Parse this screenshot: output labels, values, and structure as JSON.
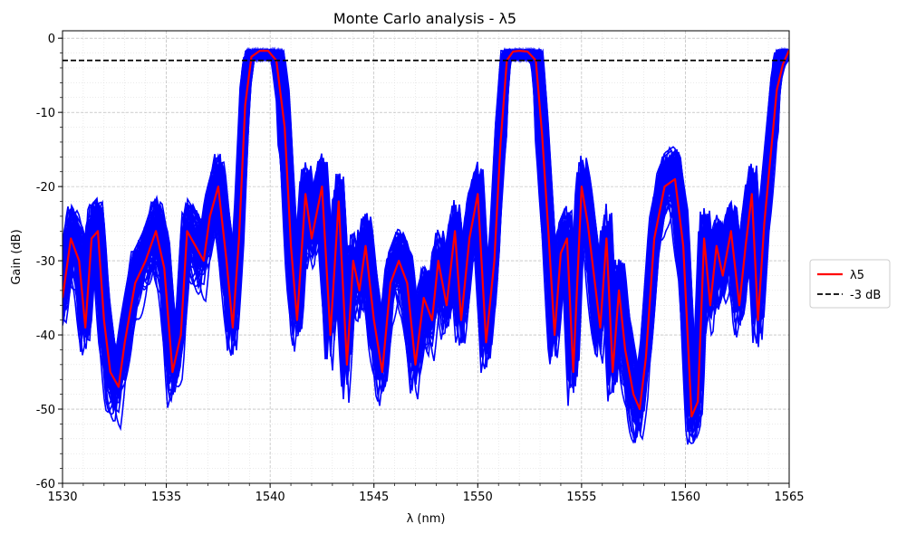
{
  "chart_data": {
    "type": "line",
    "title": "Monte Carlo analysis - λ5",
    "xlabel": "λ (nm)",
    "ylabel": "Gain (dB)",
    "xlim": [
      1530,
      1565
    ],
    "ylim": [
      -60,
      1
    ],
    "x_ticks": [
      1530,
      1535,
      1540,
      1545,
      1550,
      1555,
      1560,
      1565
    ],
    "y_ticks": [
      0,
      -10,
      -20,
      -30,
      -40,
      -50,
      -60
    ],
    "grid": true,
    "legend_position": "right-center",
    "legend": [
      "λ5",
      "-3 dB"
    ],
    "colors": {
      "main": "#ff0000",
      "monte_carlo": "#0000ff",
      "threshold": "#000000"
    },
    "threshold_db": -3,
    "main_series": {
      "name": "λ5",
      "x": [
        1530,
        1530.4,
        1530.8,
        1531.1,
        1531.4,
        1531.7,
        1532.0,
        1532.3,
        1532.7,
        1533.0,
        1533.5,
        1534.0,
        1534.5,
        1534.9,
        1535.3,
        1535.7,
        1536.0,
        1536.4,
        1536.8,
        1537.1,
        1537.5,
        1537.9,
        1538.2,
        1538.5,
        1538.8,
        1539.1,
        1539.5,
        1539.9,
        1540.3,
        1540.7,
        1541.0,
        1541.3,
        1541.7,
        1542.0,
        1542.5,
        1542.9,
        1543.3,
        1543.7,
        1544.0,
        1544.3,
        1544.6,
        1545.0,
        1545.4,
        1545.8,
        1546.2,
        1546.6,
        1547.0,
        1547.4,
        1547.8,
        1548.1,
        1548.5,
        1548.9,
        1549.2,
        1549.6,
        1550.0,
        1550.4,
        1550.8,
        1551.1,
        1551.4,
        1551.7,
        1552.0,
        1552.4,
        1552.8,
        1553.1,
        1553.4,
        1553.7,
        1554.0,
        1554.3,
        1554.6,
        1555.0,
        1555.3,
        1555.6,
        1555.9,
        1556.2,
        1556.5,
        1556.8,
        1557.1,
        1557.5,
        1557.8,
        1558.1,
        1558.5,
        1559.0,
        1559.5,
        1559.9,
        1560.3,
        1560.6,
        1560.9,
        1561.2,
        1561.5,
        1561.8,
        1562.2,
        1562.6,
        1562.9,
        1563.2,
        1563.5,
        1563.8,
        1564.1,
        1564.4,
        1564.7,
        1565.0
      ],
      "y": [
        -35,
        -27,
        -30,
        -39,
        -27,
        -26,
        -38,
        -45,
        -47,
        -41,
        -33,
        -30,
        -26,
        -31,
        -45,
        -40,
        -26,
        -28,
        -30,
        -24,
        -20,
        -30,
        -39,
        -27,
        -9,
        -2.5,
        -1.7,
        -1.7,
        -3,
        -12,
        -28,
        -38,
        -21,
        -27,
        -20,
        -40,
        -22,
        -44,
        -30,
        -34,
        -28,
        -38,
        -45,
        -33,
        -30,
        -33,
        -44,
        -35,
        -38,
        -30,
        -36,
        -26,
        -38,
        -27,
        -21,
        -41,
        -30,
        -14,
        -3,
        -1.8,
        -1.7,
        -1.8,
        -3,
        -13,
        -26,
        -40,
        -29,
        -27,
        -45,
        -20,
        -25,
        -32,
        -39,
        -27,
        -45,
        -34,
        -42,
        -48,
        -50,
        -43,
        -27,
        -20,
        -19,
        -28,
        -51,
        -49,
        -27,
        -36,
        -28,
        -32,
        -26,
        -36,
        -28,
        -21,
        -38,
        -25,
        -16,
        -7,
        -3.5,
        -1.6
      ]
    },
    "monte_carlo_runs": 80
  }
}
